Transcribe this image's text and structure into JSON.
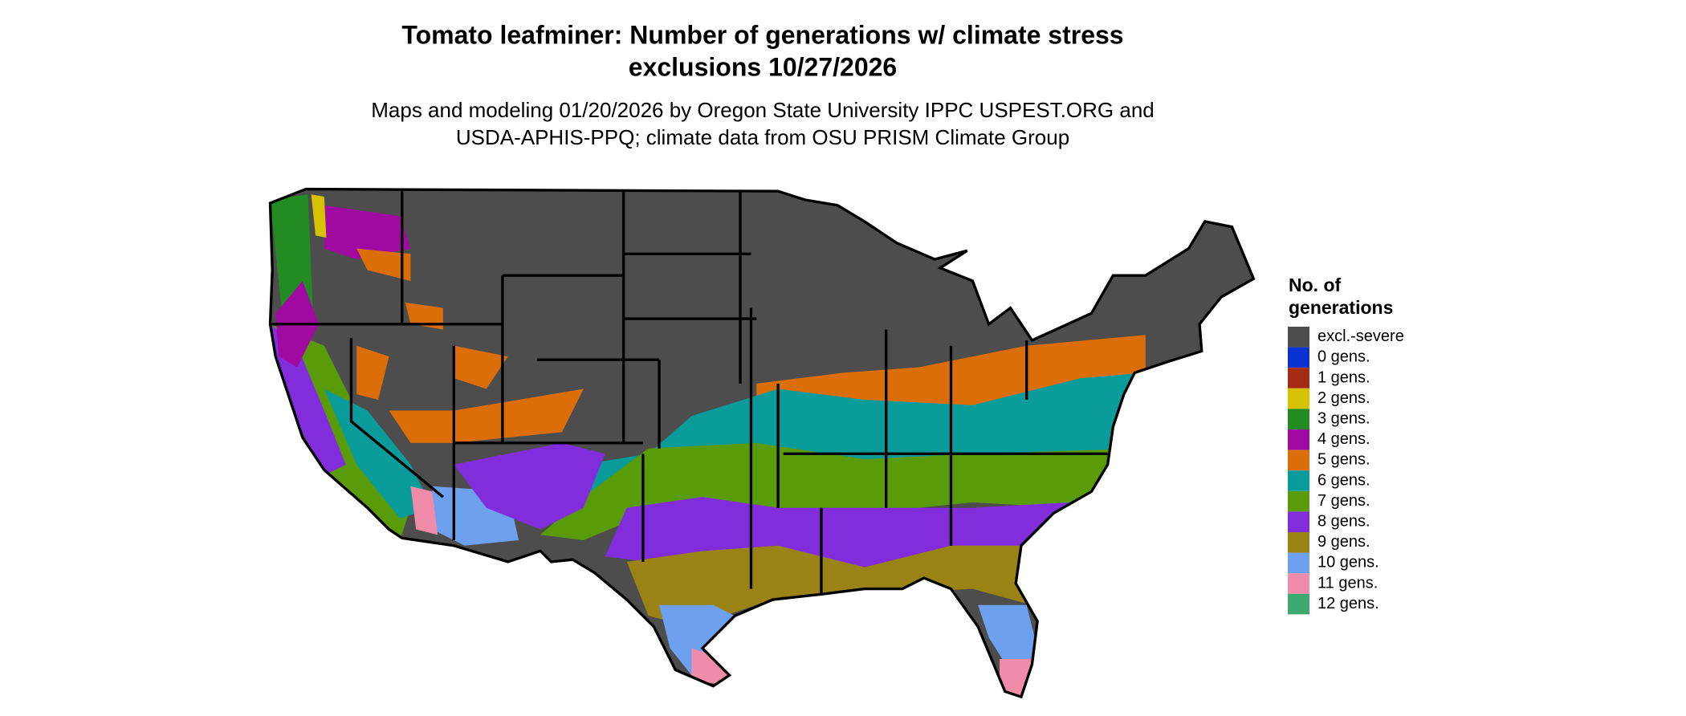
{
  "title": [
    "Tomato leafminer: Number of generations w/ climate stress",
    "exclusions 10/27/2026"
  ],
  "subtitle": [
    "Maps and modeling 01/20/2026 by Oregon State University IPPC USPEST.ORG and",
    "USDA-APHIS-PPQ; climate data from OSU PRISM Climate Group"
  ],
  "legend": {
    "title": [
      "No. of",
      "generations"
    ],
    "items": [
      {
        "label": "excl.-severe",
        "color": "#4d4d4d"
      },
      {
        "label": "0 gens.",
        "color": "#0a32d2"
      },
      {
        "label": "1 gens.",
        "color": "#a52a14"
      },
      {
        "label": "2 gens.",
        "color": "#d6c200"
      },
      {
        "label": "3 gens.",
        "color": "#228b22"
      },
      {
        "label": "4 gens.",
        "color": "#a00aa0"
      },
      {
        "label": "5 gens.",
        "color": "#dc6e0a"
      },
      {
        "label": "6 gens.",
        "color": "#0a9b9b"
      },
      {
        "label": "7 gens.",
        "color": "#5a9b0a"
      },
      {
        "label": "8 gens.",
        "color": "#822ddc"
      },
      {
        "label": "9 gens.",
        "color": "#9b8214"
      },
      {
        "label": "10 gens.",
        "color": "#6ea0f0"
      },
      {
        "label": "11 gens.",
        "color": "#f08caa"
      },
      {
        "label": "12 gens.",
        "color": "#3caa6e"
      }
    ]
  }
}
